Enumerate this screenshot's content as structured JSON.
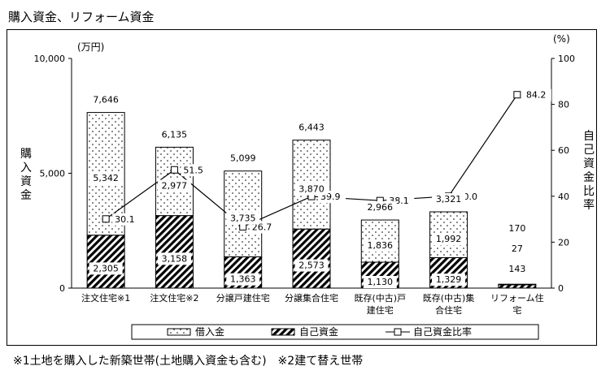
{
  "page_title": "購入資金、リフォーム資金",
  "footnote": "※1土地を購入した新築世帯(土地購入資金も含む)　※2建て替え世帯",
  "colors": {
    "axis": "#000000",
    "bar_outline": "#000000",
    "line": "#000000"
  },
  "patterns": {
    "loan": "dots",
    "own_funds": "diagonal-hatch"
  },
  "chart_data": {
    "type": "bar",
    "stacked": true,
    "categories": [
      [
        "注文住宅※1"
      ],
      [
        "注文住宅※2"
      ],
      [
        "分譲戸建住宅"
      ],
      [
        "分譲集合住宅"
      ],
      [
        "既存(中古)戸",
        "建住宅"
      ],
      [
        "既存(中古)集",
        "合住宅"
      ],
      [
        "リフォーム住",
        "宅"
      ]
    ],
    "totals": [
      "7,646",
      "6,135",
      "5,099",
      "6,443",
      "2,966",
      "3,321",
      "170"
    ],
    "totals_values": [
      7646,
      6135,
      5099,
      6443,
      2966,
      3321,
      170
    ],
    "series": [
      {
        "name": "借入金",
        "values": [
          5342,
          2977,
          3735,
          3870,
          1836,
          1992,
          27
        ],
        "labels": [
          "5,342",
          "2,977",
          "3,735",
          "3,870",
          "1,836",
          "1,992",
          "27"
        ]
      },
      {
        "name": "自己資金",
        "values": [
          2305,
          3158,
          1363,
          2573,
          1130,
          1329,
          143
        ],
        "labels": [
          "2,305",
          "3,158",
          "1,363",
          "2,573",
          "1,130",
          "1,329",
          "143"
        ]
      }
    ],
    "line": {
      "name": "自己資金比率",
      "axis": "right",
      "values": [
        30.1,
        51.5,
        26.7,
        39.9,
        38.1,
        40.0,
        84.2
      ],
      "labels": [
        "30.1",
        "51.5",
        "26.7",
        "39.9",
        "38.1",
        "40.0",
        "84.2"
      ]
    },
    "y_left": {
      "unit": "(万円)",
      "label": "購入資金",
      "range": [
        0,
        10000
      ],
      "ticks": [
        0,
        5000,
        10000
      ],
      "tick_labels": [
        "0",
        "5,000",
        "10,000"
      ]
    },
    "y_right": {
      "unit": "(%)",
      "label": "自己資金比率",
      "range": [
        0,
        100
      ],
      "ticks": [
        0,
        20,
        40,
        60,
        80,
        100
      ],
      "tick_labels": [
        "0",
        "20",
        "40",
        "60",
        "80",
        "100"
      ]
    },
    "legend": {
      "position": "bottom",
      "items": [
        "借入金",
        "自己資金",
        "自己資金比率"
      ]
    },
    "grid": false
  }
}
